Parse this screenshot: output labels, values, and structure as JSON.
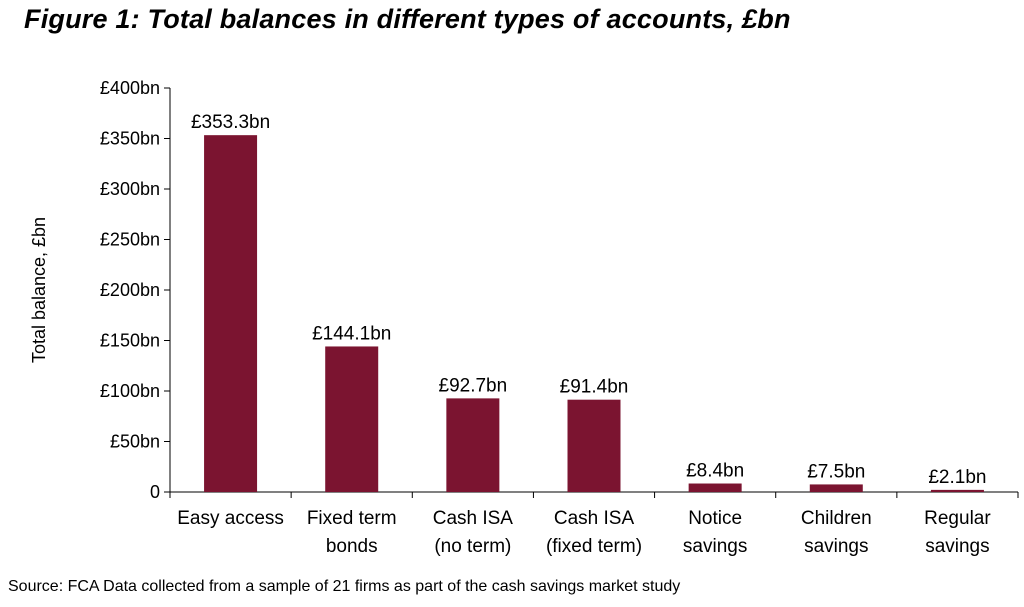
{
  "figure_title": "Figure 1: Total balances in different types of accounts, £bn",
  "source_note": "Source: FCA Data collected from a sample of 21 firms as part of the cash savings market study",
  "colors": {
    "bar": "#7B1430",
    "axis": "#000000"
  },
  "chart_data": {
    "type": "bar",
    "title": "Figure 1: Total balances in different types of accounts, £bn",
    "xlabel": "",
    "ylabel": "Total balance, £bn",
    "ylim": [
      0,
      400
    ],
    "yticks": [
      0,
      50,
      100,
      150,
      200,
      250,
      300,
      350,
      400
    ],
    "ytick_labels": [
      "0",
      "£50bn",
      "£100bn",
      "£150bn",
      "£200bn",
      "£250bn",
      "£300bn",
      "£350bn",
      "£400bn"
    ],
    "categories": [
      [
        "Easy access"
      ],
      [
        "Fixed term",
        "bonds"
      ],
      [
        "Cash ISA",
        "(no term)"
      ],
      [
        "Cash ISA",
        "(fixed term)"
      ],
      [
        "Notice",
        "savings"
      ],
      [
        "Children",
        "savings"
      ],
      [
        "Regular",
        "savings"
      ]
    ],
    "values": [
      353.3,
      144.1,
      92.7,
      91.4,
      8.4,
      7.5,
      2.1
    ],
    "data_labels": [
      "£353.3bn",
      "£144.1bn",
      "£92.7bn",
      "£91.4bn",
      "£8.4bn",
      "£7.5bn",
      "£2.1bn"
    ],
    "grid": false,
    "legend": "none"
  }
}
